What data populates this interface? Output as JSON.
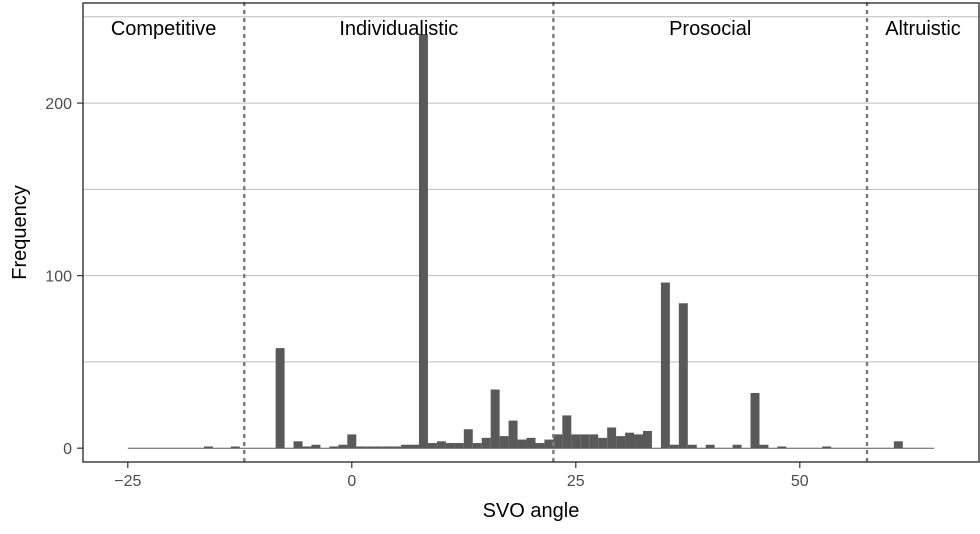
{
  "chart_data": {
    "type": "bar",
    "xlabel": "SVO angle",
    "ylabel": "Frequency",
    "xlim": [
      -30,
      70
    ],
    "ylim": [
      -8,
      258
    ],
    "x_ticks": [
      {
        "value": -25,
        "label": "−25"
      },
      {
        "value": 0,
        "label": "0"
      },
      {
        "value": 25,
        "label": "25"
      },
      {
        "value": 50,
        "label": "50"
      }
    ],
    "y_ticks": [
      {
        "value": 0,
        "label": "0"
      },
      {
        "value": 100,
        "label": "100"
      },
      {
        "value": 200,
        "label": "200"
      }
    ],
    "y_minor_gridlines": [
      50,
      150,
      250
    ],
    "grid": true,
    "bar_width": 1,
    "bar_color": "#595959",
    "bars": [
      {
        "x": -16,
        "y": 1
      },
      {
        "x": -13,
        "y": 1
      },
      {
        "x": -8,
        "y": 58
      },
      {
        "x": -6,
        "y": 4
      },
      {
        "x": -5,
        "y": 1
      },
      {
        "x": -4,
        "y": 2
      },
      {
        "x": -2,
        "y": 1
      },
      {
        "x": -1,
        "y": 2
      },
      {
        "x": 0,
        "y": 8
      },
      {
        "x": 1,
        "y": 1
      },
      {
        "x": 2,
        "y": 1
      },
      {
        "x": 3,
        "y": 1
      },
      {
        "x": 4,
        "y": 1
      },
      {
        "x": 5,
        "y": 1
      },
      {
        "x": 6,
        "y": 2
      },
      {
        "x": 7,
        "y": 2
      },
      {
        "x": 8,
        "y": 240
      },
      {
        "x": 9,
        "y": 3
      },
      {
        "x": 10,
        "y": 4
      },
      {
        "x": 11,
        "y": 3
      },
      {
        "x": 12,
        "y": 3
      },
      {
        "x": 13,
        "y": 11
      },
      {
        "x": 14,
        "y": 3
      },
      {
        "x": 15,
        "y": 6
      },
      {
        "x": 16,
        "y": 34
      },
      {
        "x": 17,
        "y": 7
      },
      {
        "x": 18,
        "y": 16
      },
      {
        "x": 19,
        "y": 5
      },
      {
        "x": 20,
        "y": 6
      },
      {
        "x": 21,
        "y": 3
      },
      {
        "x": 22,
        "y": 5
      },
      {
        "x": 23,
        "y": 8
      },
      {
        "x": 24,
        "y": 19
      },
      {
        "x": 25,
        "y": 8
      },
      {
        "x": 26,
        "y": 8
      },
      {
        "x": 27,
        "y": 8
      },
      {
        "x": 28,
        "y": 6
      },
      {
        "x": 29,
        "y": 12
      },
      {
        "x": 30,
        "y": 7
      },
      {
        "x": 31,
        "y": 9
      },
      {
        "x": 32,
        "y": 8
      },
      {
        "x": 33,
        "y": 10
      },
      {
        "x": 35,
        "y": 96
      },
      {
        "x": 36,
        "y": 2
      },
      {
        "x": 37,
        "y": 84
      },
      {
        "x": 38,
        "y": 2
      },
      {
        "x": 40,
        "y": 2
      },
      {
        "x": 43,
        "y": 2
      },
      {
        "x": 45,
        "y": 32
      },
      {
        "x": 46,
        "y": 2
      },
      {
        "x": 48,
        "y": 1
      },
      {
        "x": 53,
        "y": 1
      },
      {
        "x": 61,
        "y": 4
      }
    ],
    "zero_line_xlim": [
      -25,
      65
    ],
    "category_lines": [
      -12,
      22.5,
      57.5
    ],
    "regions": [
      {
        "label": "Competitive",
        "from": -30,
        "to": -12
      },
      {
        "label": "Individualistic",
        "from": -12,
        "to": 22.5
      },
      {
        "label": "Prosocial",
        "from": 22.5,
        "to": 57.5
      },
      {
        "label": "Altruistic",
        "from": 57.5,
        "to": 70
      }
    ]
  }
}
